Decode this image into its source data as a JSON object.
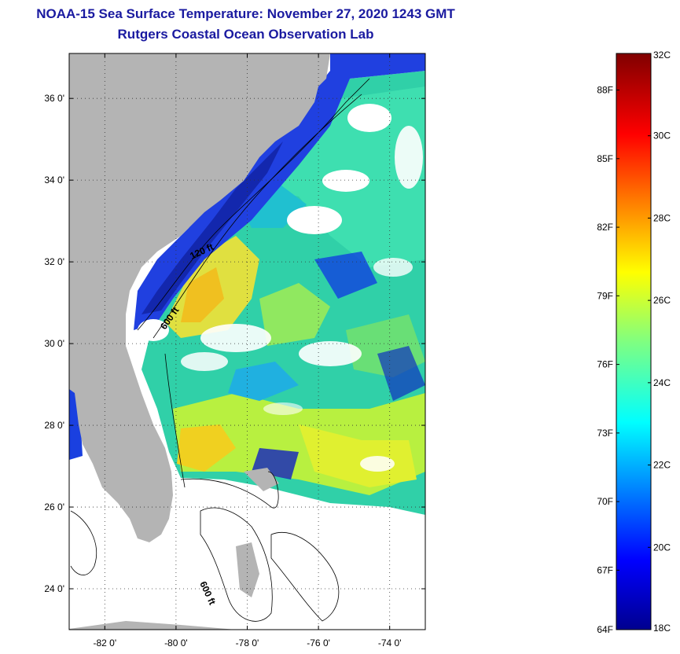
{
  "header": {
    "title": "NOAA-15 Sea Surface Temperature:  November 27, 2020 1243 GMT",
    "subtitle": "Rutgers Coastal Ocean Observation Lab"
  },
  "map": {
    "lat_range": [
      23,
      37.1
    ],
    "lon_range": [
      -83,
      -73
    ],
    "lat_ticks": [
      "36 0'",
      "34 0'",
      "32 0'",
      "30 0'",
      "28 0'",
      "26 0'",
      "24 0'"
    ],
    "lat_values": [
      36,
      34,
      32,
      30,
      28,
      26,
      24
    ],
    "lon_ticks": [
      "-82 0'",
      "-80 0'",
      "-78 0'",
      "-76 0'",
      "-74 0'"
    ],
    "lon_values": [
      -82,
      -80,
      -78,
      -76,
      -74
    ],
    "contour_labels": [
      "120 ft",
      "600 ft",
      "600 ft"
    ],
    "colors": {
      "land": "#b4b4b4",
      "no_data": "#ffffff",
      "grid": "#000000"
    }
  },
  "colorbar": {
    "min_c": 18,
    "max_c": 32,
    "celsius_labels": [
      "32C",
      "30C",
      "28C",
      "26C",
      "24C",
      "22C",
      "20C",
      "18C"
    ],
    "celsius_values": [
      32,
      30,
      28,
      26,
      24,
      22,
      20,
      18
    ],
    "fahrenheit_labels": [
      "88F",
      "85F",
      "82F",
      "79F",
      "76F",
      "73F",
      "70F",
      "67F",
      "64F"
    ],
    "fahrenheit_values": [
      88,
      85,
      82,
      79,
      76,
      73,
      70,
      67,
      64
    ]
  }
}
